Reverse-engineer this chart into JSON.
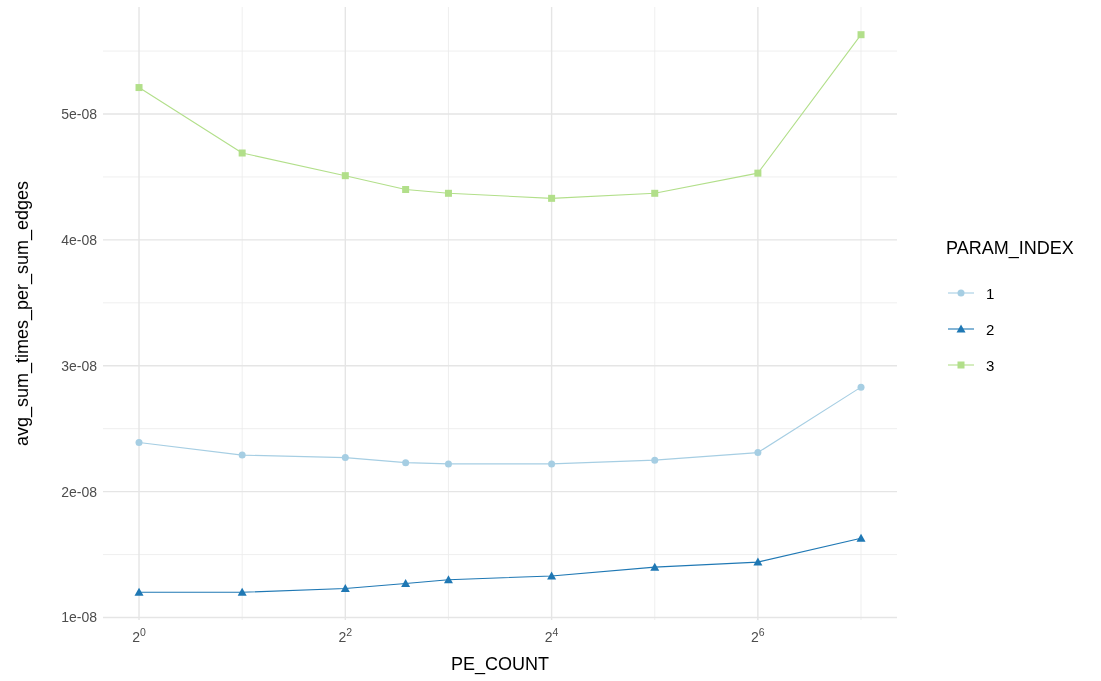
{
  "chart_data": {
    "type": "line",
    "xlabel": "PE_COUNT",
    "ylabel": "avg_sum_times_per_sum_edges",
    "legend_title": "PARAM_INDEX",
    "log": "x",
    "grid": true,
    "legend": "right",
    "marker": "circle",
    "line_style": "solid",
    "xlim": [
      0.785,
      163
    ],
    "xticks": [
      {
        "value": 1,
        "label": "2$^{0}$"
      },
      {
        "value": 4,
        "label": "2$^{2}$"
      },
      {
        "value": 16,
        "label": "2$^{4}$"
      },
      {
        "value": 64,
        "label": "2$^{6}$"
      }
    ],
    "ylim": [
      9.8e-09,
      5.85e-08
    ],
    "yticks": [
      {
        "value": 1e-08,
        "label": "1e-08"
      },
      {
        "value": 2e-08,
        "label": "2e-08"
      },
      {
        "value": 3e-08,
        "label": "3e-08"
      },
      {
        "value": 4e-08,
        "label": "4e-08"
      },
      {
        "value": 5e-08,
        "label": "5e-08"
      }
    ],
    "x": [
      1,
      2,
      4,
      6,
      8,
      16,
      32,
      64,
      128
    ],
    "series": [
      {
        "name": "1",
        "color": "#a6cee3",
        "marker": "circle",
        "values": [
          2.39e-08,
          2.29e-08,
          2.27e-08,
          2.23e-08,
          2.22e-08,
          2.22e-08,
          2.25e-08,
          2.31e-08,
          2.83e-08
        ]
      },
      {
        "name": "2",
        "color": "#1f78b4",
        "marker": "triangle",
        "values": [
          1.2e-08,
          1.2e-08,
          1.23e-08,
          1.27e-08,
          1.3e-08,
          1.33e-08,
          1.4e-08,
          1.44e-08,
          1.63e-08
        ]
      },
      {
        "name": "3",
        "color": "#b2df8a",
        "marker": "square",
        "values": [
          5.21e-08,
          4.69e-08,
          4.51e-08,
          4.4e-08,
          4.37e-08,
          4.33e-08,
          4.37e-08,
          4.53e-08,
          5.63e-08
        ]
      }
    ]
  }
}
